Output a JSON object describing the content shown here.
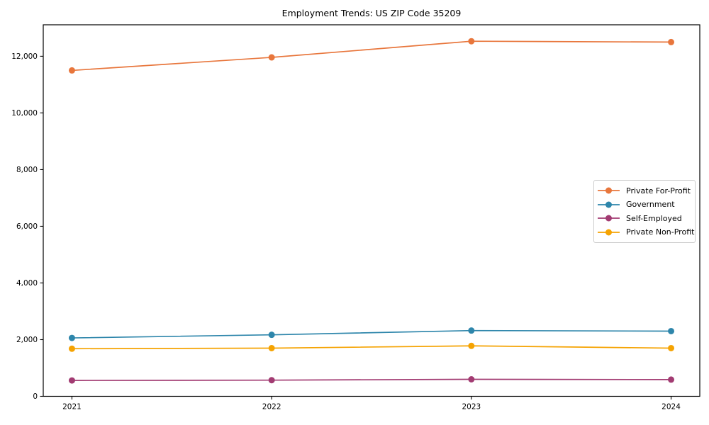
{
  "figure": {
    "title": "Employment Trends: US ZIP Code 35209"
  },
  "chart_data": {
    "type": "line",
    "title": "Employment Trends: US ZIP Code 35209",
    "x": [
      "2021",
      "2022",
      "2023",
      "2024"
    ],
    "series": [
      {
        "name": "Private For-Profit",
        "color": "#E8763C",
        "values": [
          11500,
          11960,
          12530,
          12500
        ]
      },
      {
        "name": "Government",
        "color": "#2E86AB",
        "values": [
          2060,
          2170,
          2320,
          2300
        ]
      },
      {
        "name": "Self-Employed",
        "color": "#A23B72",
        "values": [
          560,
          570,
          600,
          590
        ]
      },
      {
        "name": "Private Non-Profit",
        "color": "#F5A302",
        "values": [
          1680,
          1700,
          1780,
          1700
        ]
      }
    ],
    "xlabel": "",
    "ylabel": "",
    "ylim": [
      0,
      13110
    ],
    "yticks": [
      0,
      2000,
      4000,
      6000,
      8000,
      10000,
      12000
    ],
    "ytick_format": "comma",
    "grid": false,
    "legend_position": "center-right",
    "marker": "circle",
    "line_width": 1.7,
    "marker_radius": 4.5,
    "axis_color": "#000000",
    "background": "#ffffff"
  }
}
